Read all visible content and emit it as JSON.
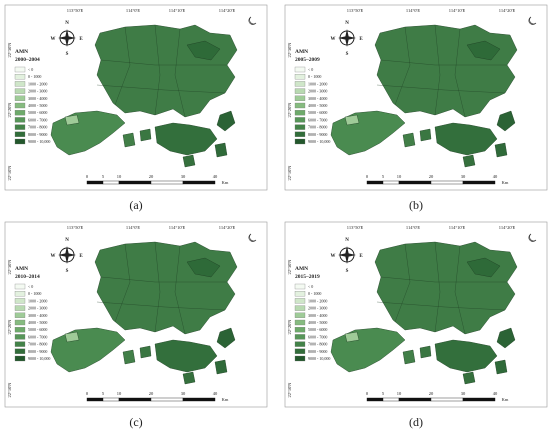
{
  "map_common": {
    "coordinates_top": [
      "113°50'E",
      "114°0'E",
      "114°10'E",
      "114°20'E"
    ],
    "coordinates_left": [
      "22°30'N",
      "22°20'N",
      "22°10'N"
    ],
    "compass": [
      "N",
      "E",
      "S",
      "W"
    ],
    "legend": [
      {
        "label": "< 0",
        "color": "#f4faf2"
      },
      {
        "label": "0 - 1000",
        "color": "#e3f1df"
      },
      {
        "label": "1000 - 2000",
        "color": "#cfe6c9"
      },
      {
        "label": "2000 - 3000",
        "color": "#b8d9b1"
      },
      {
        "label": "3000 - 4000",
        "color": "#9fcb98"
      },
      {
        "label": "4000 - 5000",
        "color": "#86bb80"
      },
      {
        "label": "5000 - 6000",
        "color": "#6eaa6b"
      },
      {
        "label": "6000 - 7000",
        "color": "#579659"
      },
      {
        "label": "7000 - 8000",
        "color": "#438248"
      },
      {
        "label": "8000 - 9000",
        "color": "#326d3a"
      },
      {
        "label": "9000 - 10,000",
        "color": "#23572c"
      }
    ],
    "scale": [
      "0",
      "5",
      "10",
      "20",
      "30",
      "40",
      "Km"
    ]
  },
  "panels": [
    {
      "title": "AMN",
      "period": "2000–2004",
      "caption": "(a)"
    },
    {
      "title": "AMN",
      "period": "2005–2009",
      "caption": "(b)"
    },
    {
      "title": "AMN",
      "period": "2010–2014",
      "caption": "(c)"
    },
    {
      "title": "AMN",
      "period": "2015–2019",
      "caption": "(d)"
    }
  ]
}
